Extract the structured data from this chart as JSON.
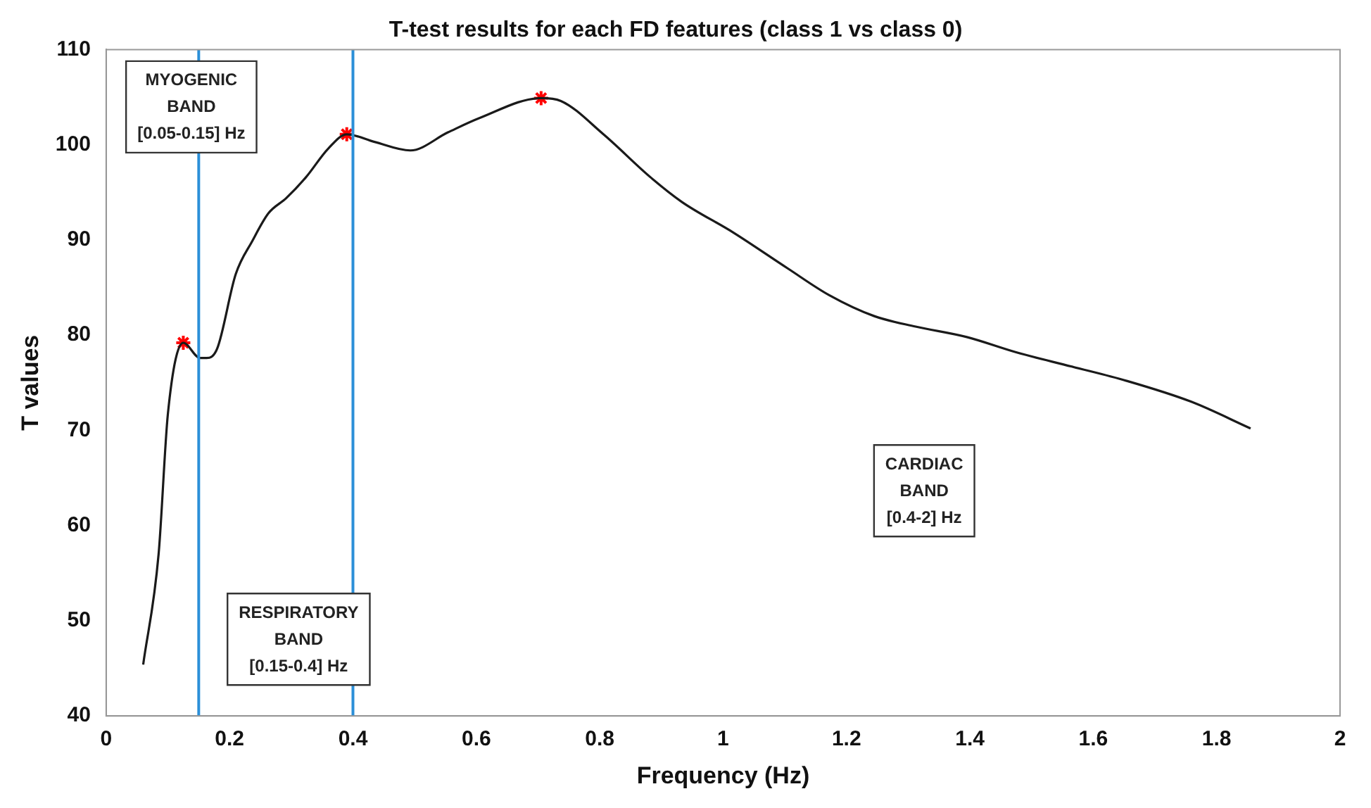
{
  "chart_data": {
    "type": "line",
    "title": "T-test results for each FD features (class 1 vs class 0)",
    "xlabel": "Frequency (Hz)",
    "ylabel": "T values",
    "xlim": [
      0,
      2
    ],
    "xticks": [
      0,
      0.2,
      0.4,
      0.6,
      0.8,
      1,
      1.2,
      1.4,
      1.6,
      1.8,
      2
    ],
    "ylim": [
      40,
      110
    ],
    "yticks": [
      40,
      50,
      60,
      70,
      80,
      90,
      100,
      110
    ],
    "grid": false,
    "legend": false,
    "series": [
      {
        "type": "line",
        "marker": "none",
        "color": "#1a1a1a",
        "x": [
          0.06,
          0.085,
          0.1,
          0.125,
          0.152,
          0.163,
          0.18,
          0.21,
          0.237,
          0.263,
          0.292,
          0.324,
          0.36,
          0.39,
          0.435,
          0.493,
          0.554,
          0.605,
          0.705,
          0.737,
          0.806,
          0.882,
          0.933,
          1.016,
          1.105,
          1.172,
          1.245,
          1.312,
          1.395,
          1.475,
          1.565,
          1.654,
          1.759,
          1.855
        ],
        "values": [
          45.4,
          57,
          71.7,
          79.2,
          77.6,
          77.6,
          78.6,
          86.4,
          89.9,
          92.8,
          94.4,
          96.6,
          99.6,
          101.1,
          100.3,
          99.4,
          101.3,
          102.8,
          104.9,
          104.6,
          101.1,
          96.6,
          94,
          90.8,
          87,
          84.2,
          82,
          80.9,
          79.8,
          78.2,
          76.7,
          75.2,
          73,
          70.2
        ]
      },
      {
        "type": "scatter",
        "marker": "cross",
        "color": "#ff0000",
        "x": [
          0.125,
          0.39,
          0.705
        ],
        "values": [
          79.2,
          101.1,
          104.9
        ]
      }
    ],
    "ref_lines": [
      {
        "axis": "x",
        "value": 0.15,
        "color": "#2b8fd8"
      },
      {
        "axis": "x",
        "value": 0.4,
        "color": "#2b8fd8"
      }
    ],
    "annotations": [
      "MYOGENIC\nBAND\n[0.05-0.15] Hz",
      "RESPIRATORY\nBAND\n[0.15-0.4] Hz",
      "CARDIAC\nBAND\n[0.4-2] Hz"
    ]
  }
}
